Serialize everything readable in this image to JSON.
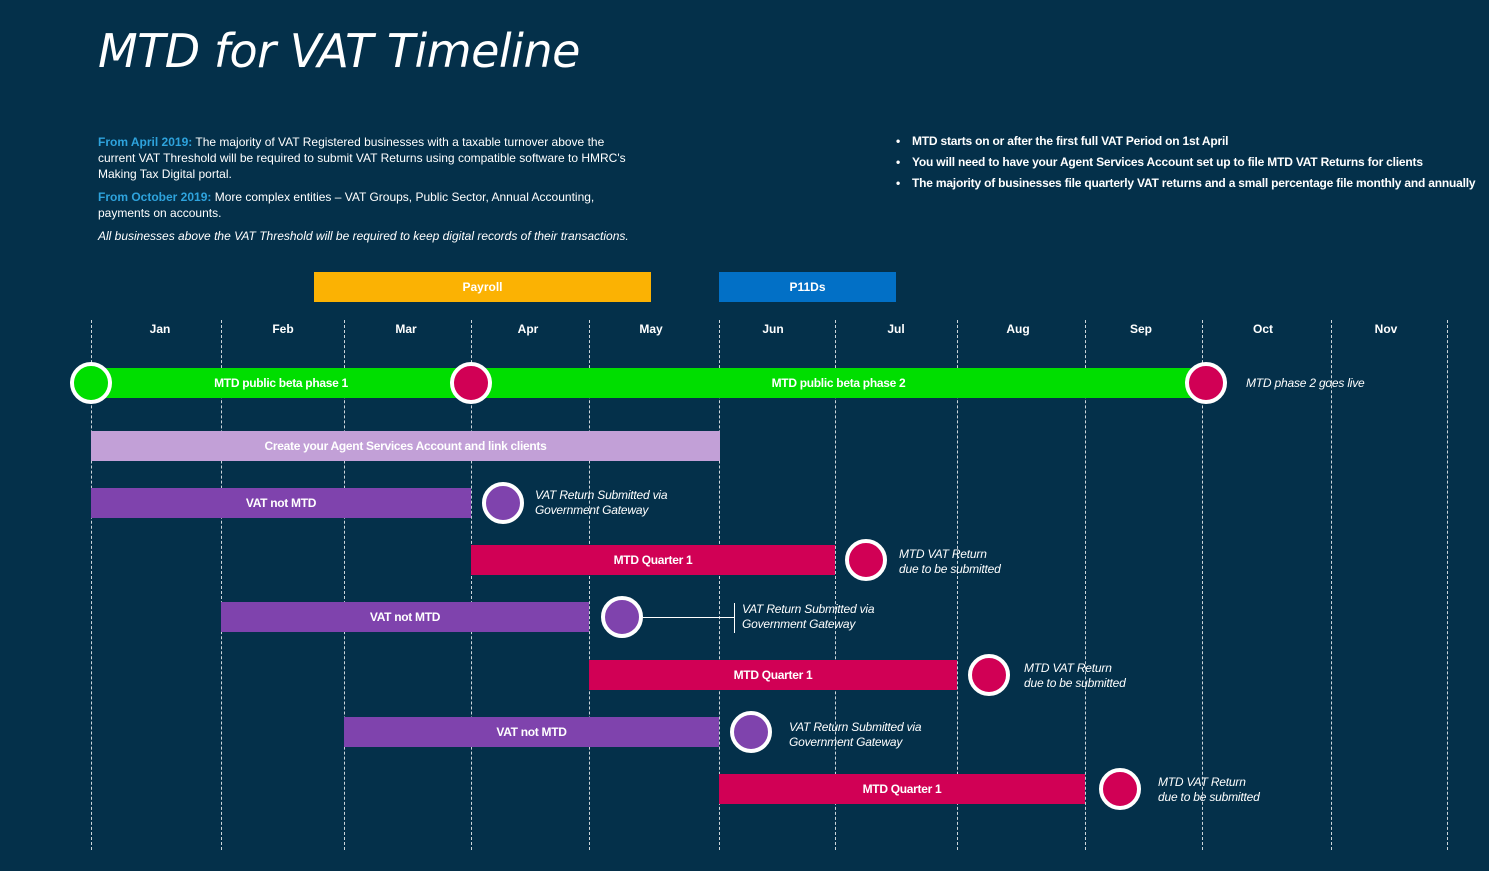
{
  "title": "MTD for VAT Timeline",
  "intro": {
    "p1_highlight": "From April 2019:",
    "p1_text": " The majority of VAT Registered businesses with a taxable turnover above the current VAT Threshold will be required to submit VAT Returns using compatible software to HMRC's Making Tax Digital portal.",
    "p2_highlight": "From October 2019:",
    "p2_text": " More complex entities – VAT Groups, Public Sector, Annual Accounting, payments on accounts.",
    "note": "All businesses above the VAT Threshold will be required to keep digital records of their transactions."
  },
  "bullets": [
    "MTD starts on or after the first full VAT Period on 1st April",
    "You will need to have your Agent Services Account set up to file MTD VAT Returns for clients",
    "The majority of businesses file quarterly VAT returns and a small percentage file monthly and annually"
  ],
  "tags": {
    "payroll": "Payroll",
    "p11ds": "P11Ds"
  },
  "months": [
    "Jan",
    "Feb",
    "Mar",
    "Apr",
    "May",
    "Jun",
    "Jul",
    "Aug",
    "Sep",
    "Oct",
    "Nov"
  ],
  "bars": {
    "beta1": "MTD public beta phase 1",
    "beta2": "MTD public beta phase 2",
    "agent": "Create your Agent Services Account and link clients",
    "vat1": "VAT not MTD",
    "mtd1": "MTD Quarter 1",
    "vat2": "VAT not MTD",
    "mtd2": "MTD Quarter 1",
    "vat3": "VAT not MTD",
    "mtd3": "MTD Quarter 1"
  },
  "annotations": {
    "golive": "MTD phase 2 goes live",
    "gateway1_l1": "VAT Return Submitted via",
    "gateway1_l2": "Government Gateway",
    "due1_l1": "MTD VAT Return",
    "due1_l2": "due to be submitted",
    "gateway2_l1": "VAT Return Submitted via",
    "gateway2_l2": "Government Gateway",
    "due2_l1": "MTD VAT Return",
    "due2_l2": "due to be submitted",
    "gateway3_l1": "VAT Return Submitted via",
    "gateway3_l2": "Government Gateway",
    "due3_l1": "MTD VAT Return",
    "due3_l2": "due to be submitted"
  },
  "colors": {
    "background": "#04304a",
    "highlight": "#2ea3dd",
    "payroll": "#fbb203",
    "p11ds": "#0270c6",
    "beta": "#00de00",
    "agent": "#c2a0d7",
    "vat_not_mtd": "#7f43ad",
    "mtd_quarter": "#d10055"
  }
}
